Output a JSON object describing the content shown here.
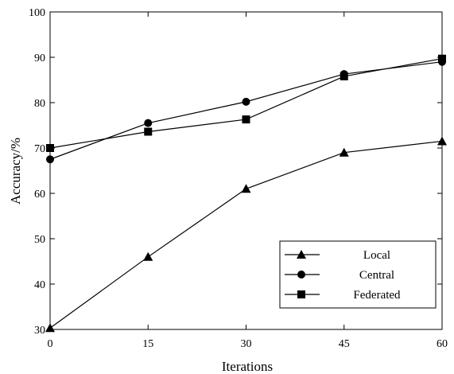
{
  "chart_data": {
    "type": "line",
    "x": [
      0,
      15,
      30,
      45,
      60
    ],
    "xlabel": "Iterations",
    "ylabel": "Accuracy/%",
    "xlim": [
      0,
      60
    ],
    "ylim": [
      30,
      100
    ],
    "xticks": [
      "0",
      "15",
      "30",
      "45",
      "60"
    ],
    "yticks": [
      "30",
      "40",
      "50",
      "60",
      "70",
      "80",
      "90",
      "100"
    ],
    "grid": false,
    "legend_position": "bottom-right",
    "series": [
      {
        "name": "Local",
        "marker": "triangle",
        "values": [
          30.3,
          46.0,
          61.0,
          69.0,
          71.5
        ]
      },
      {
        "name": "Central",
        "marker": "circle",
        "values": [
          67.5,
          75.5,
          80.2,
          86.3,
          89.0
        ]
      },
      {
        "name": "Federated",
        "marker": "square",
        "values": [
          70.0,
          73.6,
          76.3,
          85.8,
          89.7
        ]
      }
    ],
    "line_color": "#000000"
  }
}
